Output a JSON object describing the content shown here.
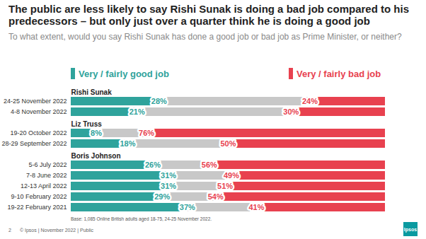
{
  "chart_data": {
    "type": "bar",
    "orientation": "horizontal",
    "stacked": true,
    "data_labels": true,
    "tick_labels": "y",
    "legend": "top",
    "title": "The public are less likely to say Rishi Sunak is doing a bad job compared to his predecessors – but only just over a quarter think he is doing a good job",
    "subtitle": "To what extent, would you say Rishi Sunak has done a good job or bad job as Prime Minister, or neither?",
    "categories": [
      "24-25 November 2022",
      "4-8 November 2022",
      "19-20 October 2022",
      "28-29 September 2022",
      "5-6 July 2022",
      "7-8 June 2022",
      "12-13 April 2022",
      "9-10 February 2022",
      "19-22 February 2021"
    ],
    "groups": [
      {
        "name": "Rishi Sunak",
        "categories": [
          "24-25 November 2022",
          "4-8 November 2022"
        ]
      },
      {
        "name": "Liz Truss",
        "categories": [
          "19-20 October 2022",
          "28-29 September 2022"
        ]
      },
      {
        "name": "Boris Johnson",
        "categories": [
          "5-6 July 2022",
          "7-8 June 2022",
          "12-13 April 2022",
          "9-10 February 2022",
          "19-22 February 2021"
        ]
      }
    ],
    "series": [
      {
        "name": "Very / fairly good job",
        "color": "#2fa39c",
        "values": [
          28,
          21,
          8,
          18,
          26,
          31,
          31,
          29,
          37
        ],
        "value_labels": [
          "28%",
          "21%",
          "8%",
          "18%",
          "26%",
          "31%",
          "31%",
          "29%",
          "37%"
        ]
      },
      {
        "color": "#c8c8c8",
        "values": [
          48,
          49,
          16,
          32,
          18,
          20,
          18,
          17,
          22
        ]
      },
      {
        "name": "Very / fairly bad job",
        "color": "#e8414f",
        "values": [
          24,
          30,
          76,
          50,
          56,
          49,
          51,
          54,
          41
        ],
        "value_labels": [
          "24%",
          "30%",
          "76%",
          "50%",
          "56%",
          "49%",
          "51%",
          "54%",
          "41%"
        ]
      }
    ],
    "xlim": [
      0,
      100
    ],
    "note": "Base: 1,085 Online British adults aged 18-75, 24-25 November 2022.",
    "footer": {
      "page": "2",
      "text": "© Ipsos | November 2022 | Public",
      "logo": "Ipsos"
    }
  }
}
